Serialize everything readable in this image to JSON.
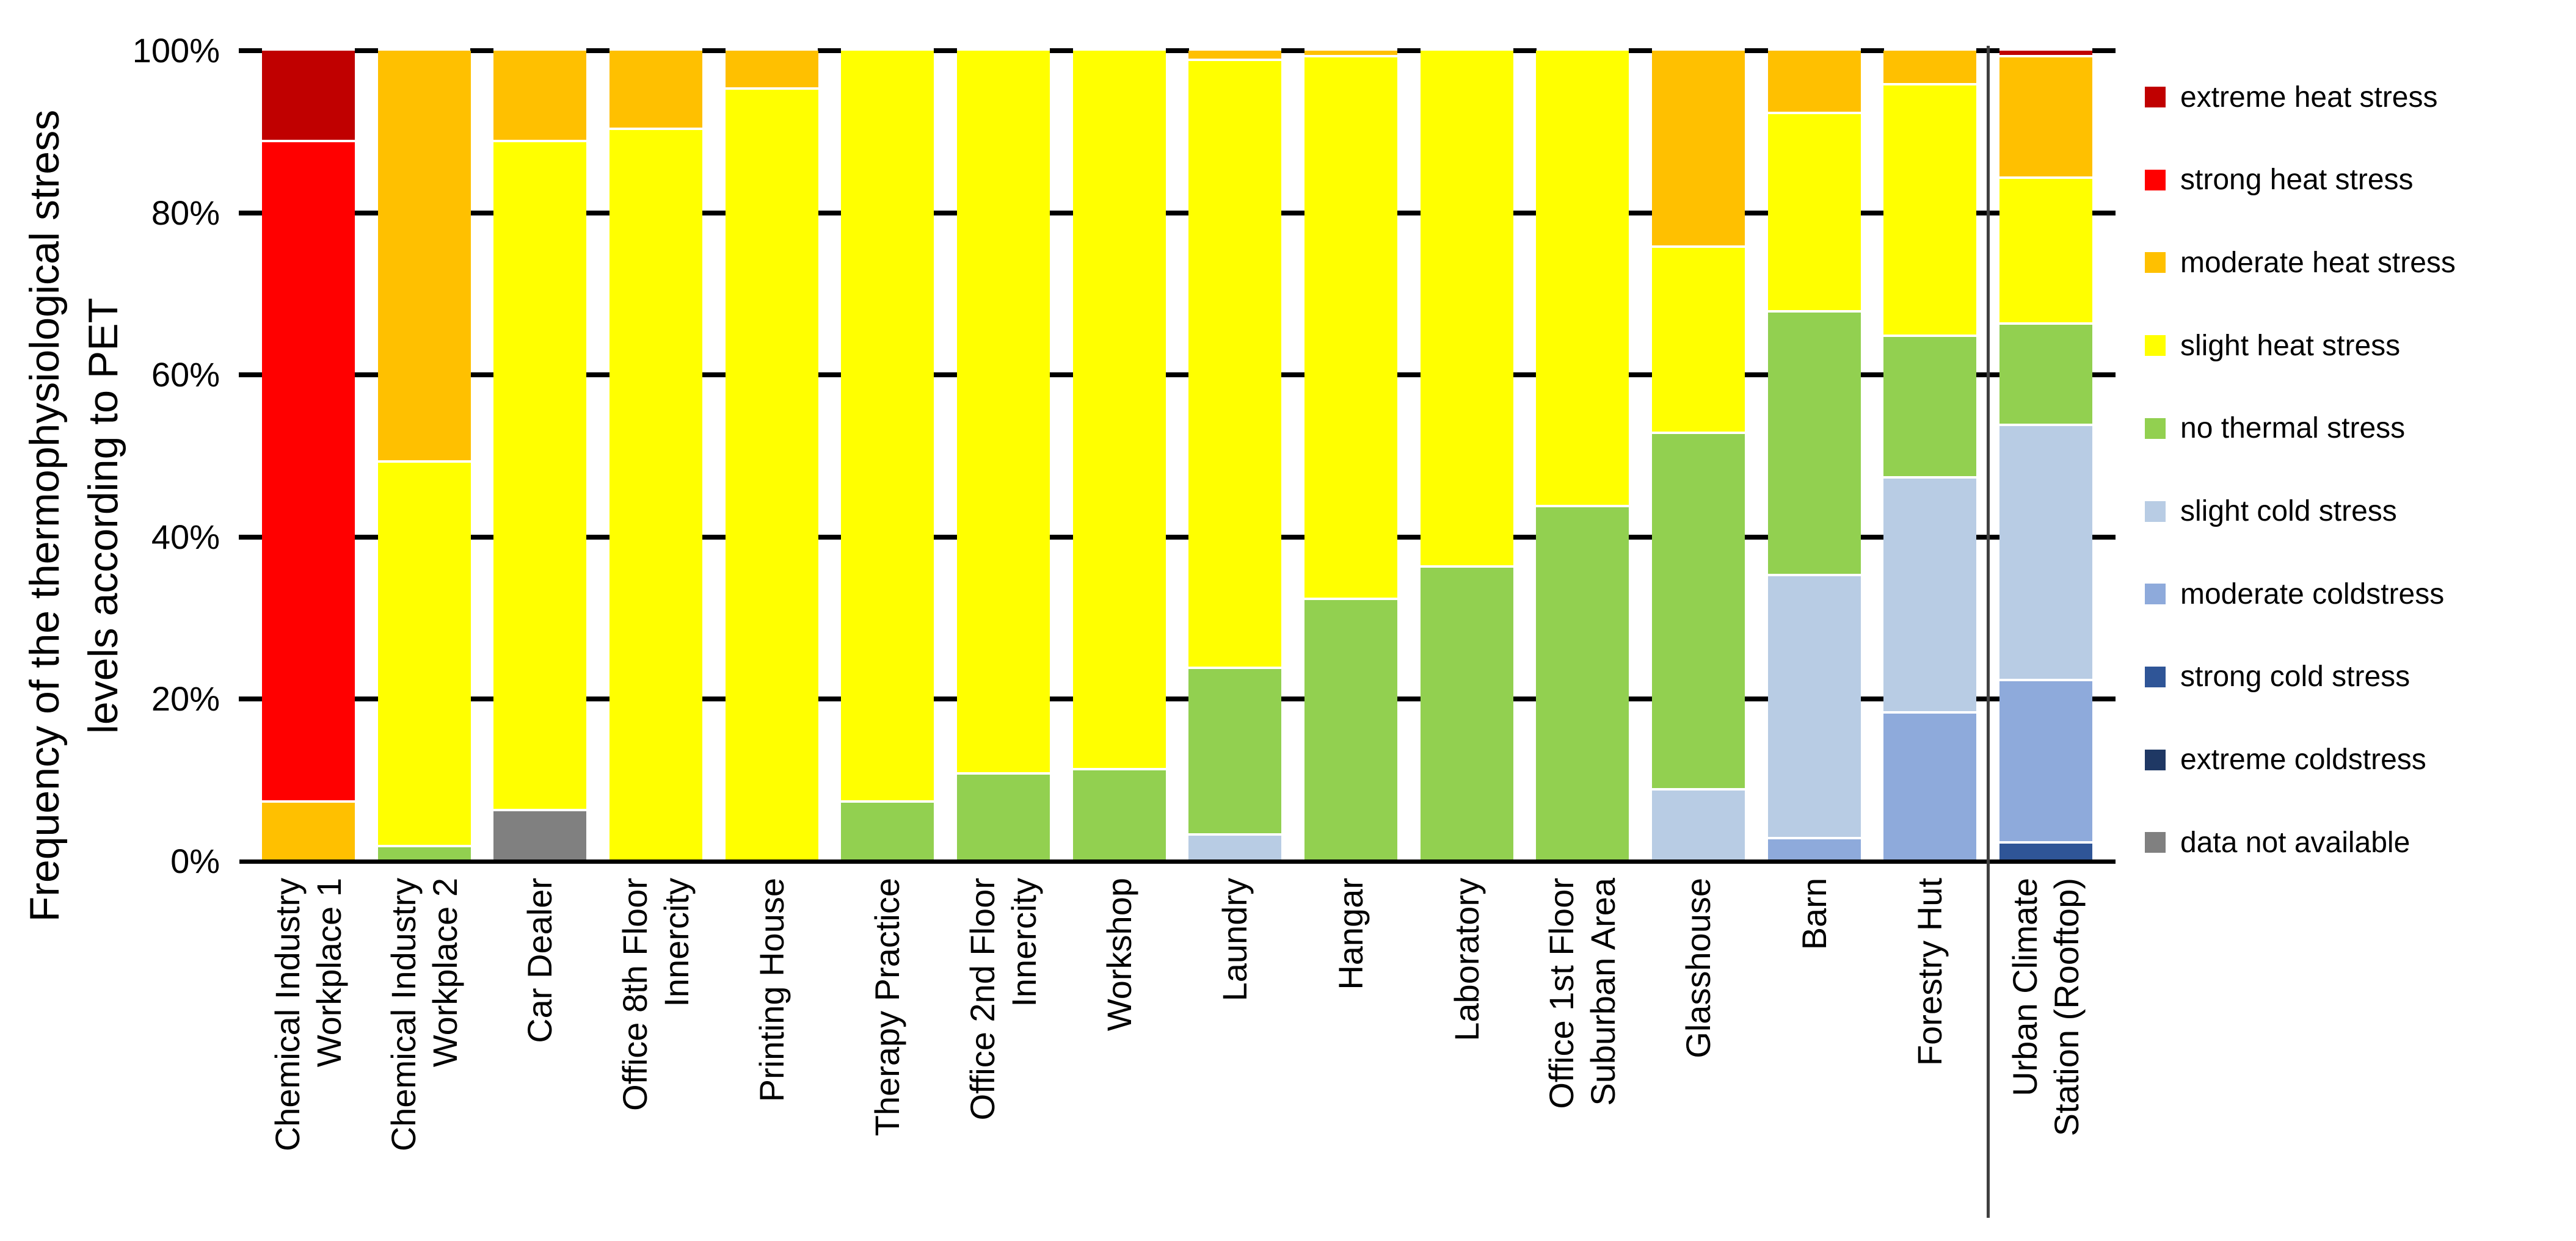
{
  "chart_data": {
    "type": "bar",
    "stacked": true,
    "percent_stacked": true,
    "title": "",
    "ylabel": "Frequency of the thermophysiological stress levels according to PET",
    "ylabel_lines": [
      "Frequency of the thermophysiological stress",
      "levels according to PET"
    ],
    "ylim": [
      0,
      100
    ],
    "ytick_labels": [
      "0%",
      "20%",
      "40%",
      "60%",
      "80%",
      "100%"
    ],
    "ytick_step_percent": 20,
    "grid": true,
    "legend_position": "right",
    "separator_before": "Urban Climate Station (Rooftop)",
    "categories": [
      {
        "label": "Chemical Industry Workplace 1",
        "lines": [
          "Chemical Industry",
          "Workplace 1"
        ]
      },
      {
        "label": "Chemical Industry Workplace 2",
        "lines": [
          "Chemical Industry",
          "Workplace 2"
        ]
      },
      {
        "label": "Car Dealer",
        "lines": [
          "Car Dealer"
        ]
      },
      {
        "label": "Office 8th Floor Innercity",
        "lines": [
          "Office 8th Floor",
          "Innercity"
        ]
      },
      {
        "label": "Printing House",
        "lines": [
          "Printing House"
        ]
      },
      {
        "label": "Therapy Practice",
        "lines": [
          "Therapy Practice"
        ]
      },
      {
        "label": "Office 2nd Floor Innercity",
        "lines": [
          "Office 2nd Floor",
          "Innercity"
        ]
      },
      {
        "label": "Workshop",
        "lines": [
          "Workshop"
        ]
      },
      {
        "label": "Laundry",
        "lines": [
          "Laundry"
        ]
      },
      {
        "label": "Hangar",
        "lines": [
          "Hangar"
        ]
      },
      {
        "label": "Laboratory",
        "lines": [
          "Laboratory"
        ]
      },
      {
        "label": "Office 1st Floor Suburban Area",
        "lines": [
          "Office 1st Floor",
          "Suburban Area"
        ]
      },
      {
        "label": "Glasshouse",
        "lines": [
          "Glasshouse"
        ]
      },
      {
        "label": "Barn",
        "lines": [
          "Barn"
        ]
      },
      {
        "label": "Forestry Hut",
        "lines": [
          "Forestry Hut"
        ]
      },
      {
        "label": "Urban Climate Station (Rooftop)",
        "lines": [
          "Urban Climate",
          "Station (Rooftop)"
        ]
      }
    ],
    "series": [
      {
        "key": "extreme_heat",
        "label": "extreme heat stress",
        "color": "#C00000",
        "values": [
          11,
          0,
          0,
          0,
          0,
          0,
          0,
          0,
          0,
          0,
          0,
          0,
          0,
          0,
          0,
          0.5
        ]
      },
      {
        "key": "strong_heat",
        "label": "strong heat stress",
        "color": "#FF0000",
        "values": [
          81.5,
          0,
          0,
          0,
          0,
          0,
          0,
          0,
          0,
          0,
          0,
          0,
          0,
          0,
          0,
          0
        ]
      },
      {
        "key": "moderate_heat",
        "label": "moderate heat stress",
        "color": "#FFC000",
        "values": [
          7.5,
          50.5,
          11,
          9.5,
          4.5,
          0,
          0,
          0,
          1,
          0.5,
          0,
          0,
          24,
          7.5,
          4,
          15
        ]
      },
      {
        "key": "slight_heat",
        "label": "slight heat stress",
        "color": "#FFFF00",
        "values": [
          0,
          47.5,
          82.5,
          90.5,
          95.5,
          92.5,
          89,
          88.5,
          75,
          67,
          63.5,
          56,
          23,
          24.5,
          31,
          18
        ]
      },
      {
        "key": "no_thermal",
        "label": "no thermal stress",
        "color": "#92D050",
        "values": [
          0,
          2,
          0,
          0,
          0,
          7.5,
          11,
          11.5,
          20.5,
          32.5,
          36.5,
          44,
          44,
          32.5,
          17.5,
          12.5
        ]
      },
      {
        "key": "slight_cold",
        "label": "slight cold stress",
        "color": "#B8CCE4",
        "values": [
          0,
          0,
          0,
          0,
          0,
          0,
          0,
          0,
          3.5,
          0,
          0,
          0,
          9,
          32.5,
          29,
          31.5
        ]
      },
      {
        "key": "moderate_cold",
        "label": "moderate coldstress",
        "color": "#8EAADB",
        "values": [
          0,
          0,
          0,
          0,
          0,
          0,
          0,
          0,
          0,
          0,
          0,
          0,
          0,
          3,
          18.5,
          20
        ]
      },
      {
        "key": "strong_cold",
        "label": "strong cold stress",
        "color": "#2F5597",
        "values": [
          0,
          0,
          0,
          0,
          0,
          0,
          0,
          0,
          0,
          0,
          0,
          0,
          0,
          0,
          0,
          2.5
        ]
      },
      {
        "key": "extreme_cold",
        "label": "extreme coldstress",
        "color": "#1F3864",
        "values": [
          0,
          0,
          0,
          0,
          0,
          0,
          0,
          0,
          0,
          0,
          0,
          0,
          0,
          0,
          0,
          0
        ]
      },
      {
        "key": "data_not_available",
        "label": "data not available",
        "color": "#808080",
        "values": [
          0,
          0,
          6.5,
          0,
          0,
          0,
          0,
          0,
          0,
          0,
          0,
          0,
          0,
          0,
          0,
          0
        ]
      }
    ]
  }
}
